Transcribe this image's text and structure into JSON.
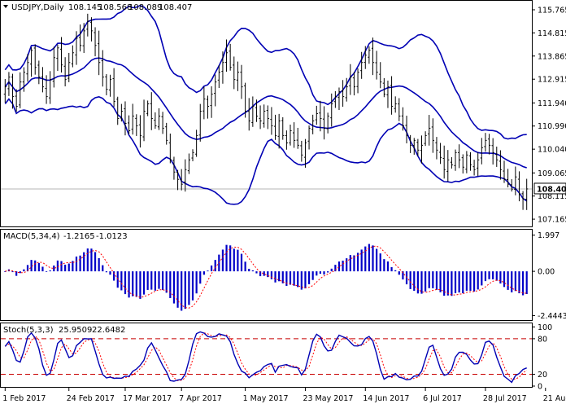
{
  "chart_data": {
    "type": "line",
    "symbol": "USDJPY",
    "timeframe": "Daily",
    "header": {
      "instrument": "USDJPY,Daily",
      "ohlc": [
        "108.145",
        "108.568",
        "108.089",
        "108.407"
      ]
    },
    "x_labels": [
      "1 Feb 2017",
      "24 Feb 2017",
      "17 Mar 2017",
      "7 Apr 2017",
      "1 May 2017",
      "23 May 2017",
      "14 Jun 2017",
      "6 Jul 2017",
      "28 Jul 2017",
      "21 Aug 2017"
    ],
    "x_label_index": [
      0,
      17,
      32,
      47,
      64,
      80,
      96,
      112,
      128,
      144
    ],
    "price": {
      "ylim": [
        106.9,
        116.1
      ],
      "ticks": [
        "115.765",
        "114.815",
        "113.865",
        "112.915",
        "111.940",
        "110.990",
        "110.040",
        "109.065",
        "108.115",
        "107.165"
      ],
      "tick_values": [
        115.765,
        114.815,
        113.865,
        112.915,
        111.94,
        110.99,
        110.04,
        109.065,
        108.115,
        107.165
      ],
      "last_price": "108.407",
      "last_value": 108.407,
      "closes": [
        112.6,
        113.0,
        112.2,
        111.8,
        112.8,
        113.2,
        113.6,
        114.1,
        113.4,
        113.0,
        112.6,
        112.2,
        112.9,
        113.8,
        114.2,
        113.5,
        112.9,
        113.6,
        114.0,
        114.6,
        114.3,
        114.9,
        115.3,
        114.9,
        114.3,
        113.6,
        113.0,
        112.5,
        112.9,
        112.0,
        111.3,
        111.6,
        111.1,
        110.8,
        111.4,
        111.0,
        110.6,
        111.6,
        111.9,
        111.3,
        111.0,
        111.4,
        110.9,
        110.4,
        109.6,
        109.1,
        108.8,
        108.6,
        109.2,
        109.6,
        109.9,
        110.6,
        111.6,
        112.1,
        111.8,
        112.3,
        112.8,
        113.2,
        113.6,
        114.0,
        113.4,
        112.9,
        113.2,
        112.6,
        111.6,
        111.2,
        111.8,
        111.4,
        111.2,
        111.6,
        111.3,
        111.0,
        110.6,
        111.2,
        110.6,
        110.3,
        110.8,
        110.4,
        110.2,
        109.8,
        110.3,
        110.9,
        111.2,
        111.5,
        111.3,
        110.9,
        111.4,
        111.9,
        112.2,
        112.4,
        112.2,
        112.6,
        113.0,
        112.6,
        113.2,
        113.6,
        113.9,
        114.1,
        113.6,
        113.2,
        112.8,
        112.3,
        112.6,
        111.8,
        111.9,
        111.4,
        111.0,
        110.6,
        110.2,
        110.4,
        110.0,
        110.2,
        110.6,
        110.9,
        110.4,
        110.0,
        109.7,
        109.2,
        109.6,
        109.4,
        109.9,
        109.6,
        109.3,
        109.8,
        109.4,
        109.2,
        109.6,
        110.1,
        110.4,
        110.2,
        109.9,
        109.6,
        109.2,
        108.8,
        108.6,
        108.4,
        108.9,
        108.2,
        108.0,
        108.407
      ],
      "bollinger": {
        "period": 20,
        "deviations": 2
      }
    },
    "macd": {
      "label": "MACD(5,34,4)",
      "values_text": [
        "-1.2165",
        "-1.0123"
      ],
      "ylim": [
        -2.65,
        2.3
      ],
      "ticks": [
        "1.997",
        "0.00",
        "-2.4443"
      ],
      "tick_values": [
        1.997,
        0.0,
        -2.4443
      ],
      "params": [
        5,
        34,
        4
      ]
    },
    "stoch": {
      "label": "Stoch(5,3,3)",
      "values_text": [
        "25.9509",
        "22.6482"
      ],
      "ylim": [
        0,
        106
      ],
      "ticks": [
        "100",
        "80",
        "20",
        "0"
      ],
      "tick_values": [
        100,
        80,
        20,
        0
      ],
      "levels": [
        80,
        20
      ],
      "params": [
        5,
        3,
        3
      ]
    },
    "colors": {
      "candle": "#000000",
      "bollinger": "#0000b4",
      "macd_hist": "#0000c8",
      "macd_signal": "#ff0000",
      "stoch_main": "#0000b4",
      "stoch_signal": "#ff0000",
      "levels": "#c80000",
      "last_price_line": "#b4b4b4"
    }
  }
}
